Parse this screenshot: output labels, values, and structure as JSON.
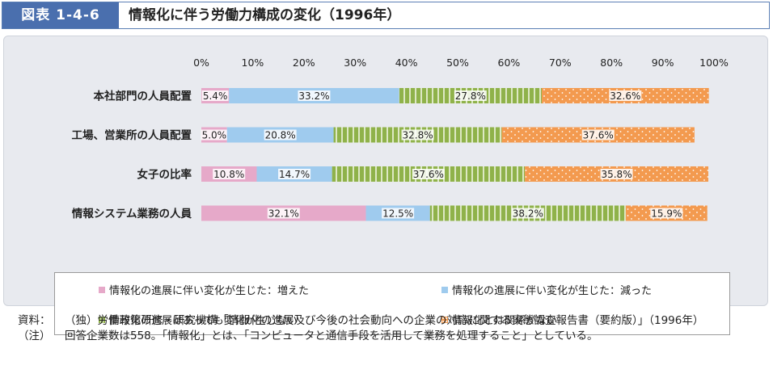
{
  "header": {
    "figure_number": "図表 1-4-6",
    "title": "情報化に伴う労働力構成の変化（1996年）"
  },
  "chart_data": {
    "type": "bar",
    "orientation": "horizontal",
    "stacked": true,
    "categories": [
      "本社部門の人員配置",
      "工場、営業所の人員配置",
      "女子の比率",
      "情報システム業務の人員"
    ],
    "series": [
      {
        "name": "情報化の進展に伴い変化が生じた：増えた",
        "values": [
          5.4,
          5.0,
          10.8,
          32.1
        ],
        "labels": [
          "5.4%",
          "5.0%",
          "10.8%",
          "32.1%"
        ],
        "color": "#e6a9c9",
        "pattern": "solid"
      },
      {
        "name": "情報化の進展に伴い変化が生じた：減った",
        "values": [
          33.2,
          20.8,
          14.7,
          12.5
        ],
        "labels": [
          "33.2%",
          "20.8%",
          "14.7%",
          "12.5%"
        ],
        "color": "#9fcbee",
        "pattern": "solid"
      },
      {
        "name": "情報化の進展はあっても変化が生じない",
        "values": [
          27.8,
          32.8,
          37.6,
          38.2
        ],
        "labels": [
          "27.8%",
          "32.8%",
          "37.6%",
          "38.2%"
        ],
        "color": "#8fb24a",
        "pattern": "vstripe"
      },
      {
        "name": "情報化とは関係がない",
        "values": [
          32.6,
          37.6,
          35.8,
          15.9
        ],
        "labels": [
          "32.6%",
          "37.6%",
          "35.8%",
          "15.9%"
        ],
        "color": "#f39a4f",
        "pattern": "dots"
      }
    ],
    "xlim": [
      0,
      100
    ],
    "xticks": [
      "0%",
      "10%",
      "20%",
      "30%",
      "40%",
      "50%",
      "60%",
      "70%",
      "80%",
      "90%",
      "100%"
    ],
    "legend_position": "bottom"
  },
  "notes": [
    {
      "label": "資料：",
      "text": "（独）労働政策研修・研究機構「情報化の進展及び今後の社会動向への企業の対応に関する実態調査報告書（要約版）」（1996年）"
    },
    {
      "label": "（注）",
      "text": "回答企業数は558。「情報化」とは、「コンピュータと通信手段を活用して業務を処理すること」としている。"
    }
  ]
}
